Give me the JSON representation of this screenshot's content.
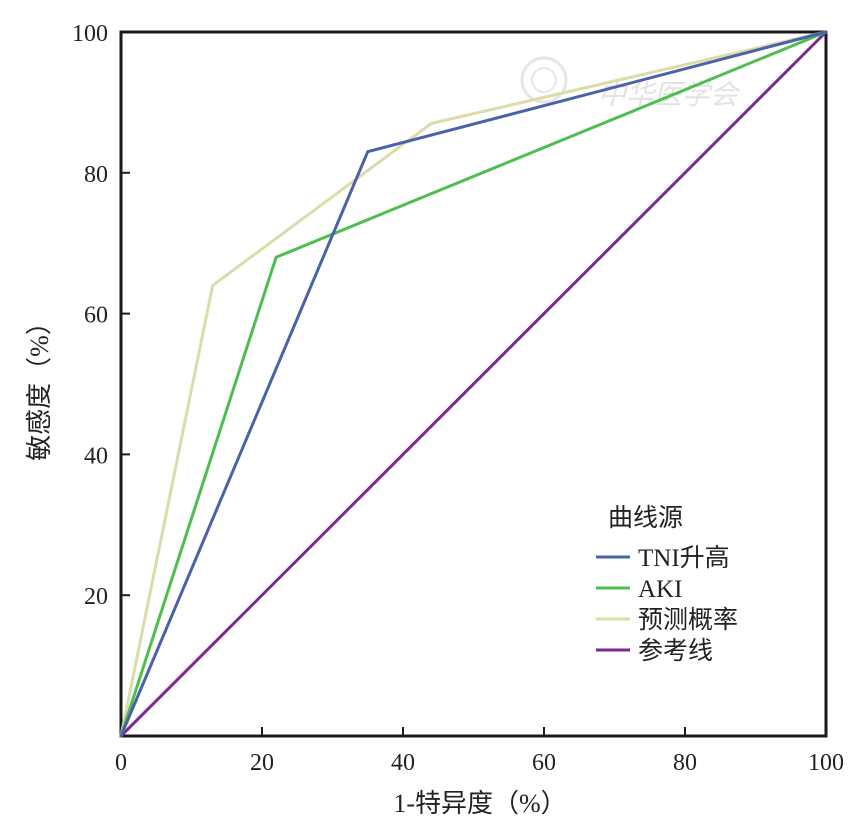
{
  "chart_data": {
    "type": "line",
    "xlabel": "1-特异度（%）",
    "ylabel": "敏感度（%）",
    "xlim": [
      0,
      100
    ],
    "ylim": [
      0,
      100
    ],
    "x_ticks": [
      "0",
      "20",
      "40",
      "60",
      "80",
      "100"
    ],
    "y_ticks": [
      "20",
      "40",
      "60",
      "80",
      "100"
    ],
    "grid": false,
    "legend_title": "曲线源",
    "legend_position": "lower-right",
    "series": [
      {
        "name": "TNI升高",
        "color": "#4a62a8",
        "x": [
          0,
          35,
          100
        ],
        "y": [
          0,
          83,
          100
        ]
      },
      {
        "name": "AKI",
        "color": "#4cbf4f",
        "x": [
          0,
          22,
          100
        ],
        "y": [
          0,
          68,
          100
        ]
      },
      {
        "name": "预测概率",
        "color": "#dcdcaa",
        "x": [
          0,
          13,
          44,
          100
        ],
        "y": [
          0,
          64,
          87,
          100
        ]
      },
      {
        "name": "参考线",
        "color": "#7b2a8f",
        "x": [
          0,
          100
        ],
        "y": [
          0,
          100
        ]
      }
    ],
    "watermark": "中华医学会"
  }
}
